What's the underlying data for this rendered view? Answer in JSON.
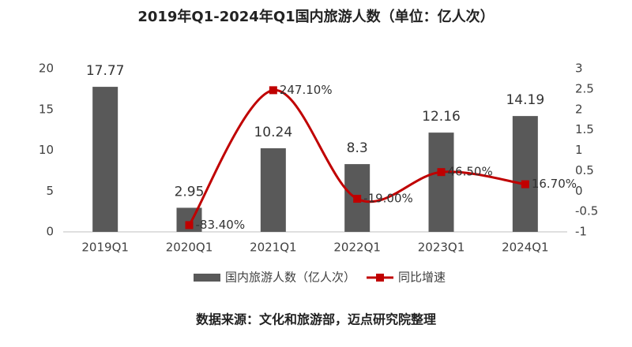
{
  "chart_data": {
    "type": "bar-line",
    "title": "2019年Q1-2024年Q1国内旅游人数（单位：亿人次）",
    "categories": [
      "2019Q1",
      "2020Q1",
      "2021Q1",
      "2022Q1",
      "2023Q1",
      "2024Q1"
    ],
    "series": [
      {
        "name": "国内旅游人数（亿人次）",
        "type": "bar",
        "color": "#595959",
        "values": [
          17.77,
          2.95,
          10.24,
          8.3,
          12.16,
          14.19
        ]
      },
      {
        "name": "同比增速",
        "type": "line",
        "axis": "y2",
        "color": "#c00000",
        "values": [
          null,
          -0.834,
          2.471,
          -0.19,
          0.465,
          0.167
        ],
        "value_labels": [
          null,
          "-83.40%",
          "247.10%",
          "-19.00%",
          "46.50%",
          "16.70%"
        ]
      }
    ],
    "ylim": [
      0,
      20
    ],
    "yticks": [
      0,
      5,
      10,
      15,
      20
    ],
    "y2lim": [
      -1,
      3
    ],
    "y2ticks": [
      -1,
      -0.5,
      0,
      0.5,
      1,
      1.5,
      2,
      2.5,
      3
    ],
    "legend": "bottom",
    "source": "数据来源：文化和旅游部，迈点研究院整理"
  }
}
